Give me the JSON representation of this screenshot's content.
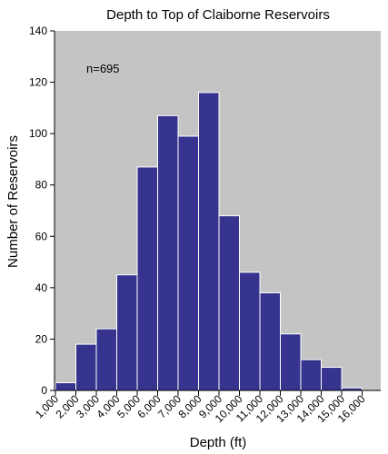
{
  "chart_data": {
    "type": "bar",
    "title": "Depth to Top of Claiborne Reservoirs",
    "xlabel": "Depth (ft)",
    "ylabel": "Number of Reservoirs",
    "annotation": "n=695",
    "bin_edges": [
      1000,
      2000,
      3000,
      4000,
      5000,
      6000,
      7000,
      8000,
      9000,
      10000,
      11000,
      12000,
      13000,
      14000,
      15000,
      16000
    ],
    "x_tick_labels": [
      "1,000",
      "2,000",
      "3,000",
      "4,000",
      "5,000",
      "6,000",
      "7,000",
      "8,000",
      "9,000",
      "10,000",
      "11,000",
      "12,000",
      "13,000",
      "14,000",
      "15,000",
      "16,000"
    ],
    "values": [
      3,
      18,
      24,
      45,
      87,
      107,
      99,
      116,
      68,
      46,
      38,
      22,
      12,
      9,
      1
    ],
    "ylim": [
      0,
      140
    ],
    "y_ticks": [
      0,
      20,
      40,
      60,
      80,
      100,
      120,
      140
    ],
    "grid": false,
    "colors": {
      "bar": "#36348f",
      "bar_edge": "#ffffff",
      "plot_background": "#c4c4c4",
      "axis": "#000000"
    }
  }
}
